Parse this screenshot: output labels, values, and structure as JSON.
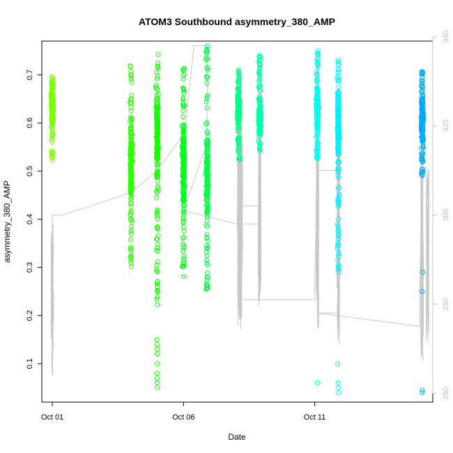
{
  "chart_data": {
    "type": "scatter",
    "title": "ATOM3 Southbound asymmetry_380_AMP",
    "xlabel": "Date",
    "ylabel": "asymmetry_380_AMP",
    "x_ticks": [
      "Oct 01",
      "Oct 06",
      "Oct 11"
    ],
    "x_tick_days": [
      1,
      6,
      11
    ],
    "xlim_days": [
      0.6,
      15.5
    ],
    "ylim": [
      0.02,
      0.77
    ],
    "y_ticks": [
      0.1,
      0.2,
      0.3,
      0.4,
      0.5,
      0.6,
      0.7
    ],
    "y2_ticks": [
      260,
      280,
      300,
      320,
      340
    ],
    "y2lim": [
      258,
      339
    ],
    "y2_color": "#c8c8c8",
    "grid": false,
    "legend": "none",
    "series": [
      {
        "day": 1.0,
        "y_min": 0.52,
        "y_max": 0.7,
        "y_center": 0.63,
        "color": "#7cfc00",
        "outliers": []
      },
      {
        "day": 4.0,
        "y_min": 0.3,
        "y_max": 0.72,
        "y_center": 0.52,
        "color": "#2eff00",
        "outliers": [
          0.7,
          0.69,
          0.61
        ]
      },
      {
        "day": 5.0,
        "y_min": 0.22,
        "y_max": 0.75,
        "y_center": 0.58,
        "color": "#14ff00",
        "outliers": [
          0.05,
          0.06,
          0.07,
          0.08,
          0.1,
          0.12,
          0.13,
          0.14,
          0.15,
          0.27,
          0.26
        ]
      },
      {
        "day": 6.0,
        "y_min": 0.27,
        "y_max": 0.72,
        "y_center": 0.52,
        "color": "#00ff1a",
        "outliers": []
      },
      {
        "day": 6.9,
        "y_min": 0.25,
        "y_max": 0.76,
        "y_center": 0.5,
        "color": "#00ff44",
        "outliers": [
          0.75,
          0.76
        ]
      },
      {
        "day": 8.1,
        "y_min": 0.52,
        "y_max": 0.72,
        "y_center": 0.63,
        "color": "#00ff88",
        "outliers": [
          0.7
        ]
      },
      {
        "day": 8.9,
        "y_min": 0.54,
        "y_max": 0.74,
        "y_center": 0.61,
        "color": "#00ffaa",
        "outliers": [
          0.73,
          0.74
        ]
      },
      {
        "day": 11.1,
        "y_min": 0.52,
        "y_max": 0.75,
        "y_center": 0.63,
        "color": "#00ffee",
        "outliers": [
          0.06,
          0.73,
          0.75
        ]
      },
      {
        "day": 11.9,
        "y_min": 0.29,
        "y_max": 0.73,
        "y_center": 0.59,
        "color": "#00f2ff",
        "outliers": [
          0.04,
          0.05,
          0.06,
          0.1,
          0.29,
          0.3,
          0.72,
          0.73
        ]
      },
      {
        "day": 15.1,
        "y_min": 0.49,
        "y_max": 0.71,
        "y_center": 0.61,
        "color": "#00aaff",
        "outliers": [
          0.04,
          0.045,
          0.25,
          0.29
        ]
      }
    ],
    "secondary_line": {
      "axis": "right",
      "color": "#c8c8c8",
      "points": [
        [
          1.0,
          264
        ],
        [
          1.0,
          278
        ],
        [
          1.0,
          300
        ],
        [
          1.4,
          300
        ],
        [
          4.0,
          305
        ],
        [
          5.0,
          310
        ],
        [
          6.0,
          318
        ],
        [
          6.0,
          316
        ],
        [
          6.4,
          338
        ],
        [
          6.9,
          338
        ],
        [
          6.9,
          316
        ],
        [
          6.0,
          301
        ],
        [
          8.0,
          298
        ],
        [
          8.9,
          298
        ],
        [
          8.9,
          302
        ],
        [
          8.1,
          302
        ],
        [
          8.1,
          281
        ],
        [
          11.0,
          281
        ],
        [
          11.0,
          285
        ],
        [
          11.1,
          310
        ],
        [
          11.9,
          310
        ],
        [
          11.9,
          278
        ],
        [
          11.1,
          278
        ],
        [
          15.0,
          275
        ],
        [
          15.0,
          282
        ],
        [
          15.1,
          310
        ],
        [
          15.2,
          318
        ]
      ],
      "spikes": [
        {
          "day": 1.0,
          "lo": 264,
          "hi": 298
        },
        {
          "day": 8.1,
          "lo": 275,
          "hi": 330
        },
        {
          "day": 8.2,
          "lo": 274,
          "hi": 325
        },
        {
          "day": 8.9,
          "lo": 279,
          "hi": 331
        },
        {
          "day": 11.1,
          "lo": 274,
          "hi": 337
        },
        {
          "day": 11.9,
          "lo": 270,
          "hi": 331
        },
        {
          "day": 15.1,
          "lo": 267,
          "hi": 318
        },
        {
          "day": 15.3,
          "lo": 270,
          "hi": 312
        }
      ]
    }
  }
}
